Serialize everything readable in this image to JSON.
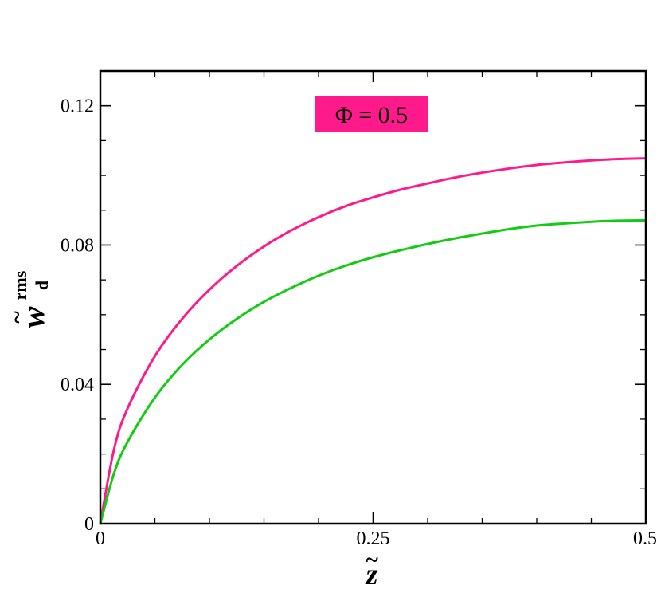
{
  "chart_data": {
    "type": "line",
    "title": "",
    "xlabel": {
      "base": "z",
      "accent": "~"
    },
    "ylabel": {
      "base": "w",
      "accent": "~",
      "sub": "d",
      "sup": "rms"
    },
    "xlim": [
      0,
      0.5
    ],
    "ylim": [
      0,
      0.13
    ],
    "x_ticks": [
      {
        "value": 0,
        "label": "0"
      },
      {
        "value": 0.25,
        "label": "0.25"
      },
      {
        "value": 0.5,
        "label": "0.5"
      }
    ],
    "y_ticks": [
      {
        "value": 0,
        "label": "0"
      },
      {
        "value": 0.04,
        "label": "0.04"
      },
      {
        "value": 0.08,
        "label": "0.08"
      },
      {
        "value": 0.12,
        "label": "0.12"
      }
    ],
    "x_minor_step": 0.05,
    "y_minor_step": 0.01,
    "grid": false,
    "annotation": {
      "text": "Φ = 0.5",
      "background": "#ff1a8c"
    },
    "series": [
      {
        "color": "#ff1a8c",
        "x": [
          0,
          0.0125,
          0.025,
          0.05,
          0.075,
          0.1,
          0.125,
          0.15,
          0.175,
          0.2,
          0.225,
          0.25,
          0.275,
          0.3,
          0.325,
          0.35,
          0.375,
          0.4,
          0.425,
          0.45,
          0.475,
          0.5
        ],
        "y": [
          0,
          0.0213,
          0.0331,
          0.0481,
          0.0588,
          0.0672,
          0.074,
          0.0796,
          0.0842,
          0.088,
          0.0912,
          0.0937,
          0.0959,
          0.0977,
          0.0994,
          0.1008,
          0.102,
          0.103,
          0.1037,
          0.1043,
          0.1047,
          0.1049
        ]
      },
      {
        "color": "#11cc11",
        "x": [
          0,
          0.0125,
          0.025,
          0.05,
          0.075,
          0.1,
          0.125,
          0.15,
          0.175,
          0.2,
          0.225,
          0.25,
          0.275,
          0.3,
          0.325,
          0.35,
          0.375,
          0.4,
          0.425,
          0.45,
          0.475,
          0.5
        ],
        "y": [
          0,
          0.0144,
          0.0235,
          0.0362,
          0.0456,
          0.0529,
          0.0588,
          0.0637,
          0.0677,
          0.0712,
          0.0741,
          0.0765,
          0.0785,
          0.0803,
          0.0819,
          0.0833,
          0.0846,
          0.0856,
          0.0862,
          0.0867,
          0.087,
          0.0871
        ]
      }
    ]
  }
}
